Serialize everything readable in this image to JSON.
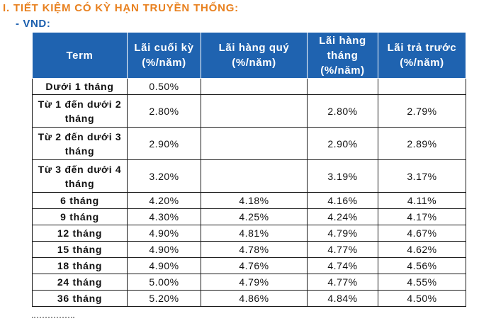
{
  "section_title": "I. TIẾT KIỆM CÓ KỲ HẠN TRUYỀN THỐNG:",
  "sub_title": "- VND:",
  "headers": [
    "Term",
    "Lãi cuối kỳ (%/năm)",
    "Lãi hàng quý (%/năm)",
    "Lãi hàng tháng (%/năm)",
    "Lãi trả trước (%/năm)"
  ],
  "rows": [
    {
      "term": "Dưới 1 tháng",
      "cuoi_ky": "0.50%",
      "hang_quy": "",
      "hang_thang": "",
      "tra_truoc": ""
    },
    {
      "term": "Từ 1 đến dưới 2 tháng",
      "cuoi_ky": "2.80%",
      "hang_quy": "",
      "hang_thang": "2.80%",
      "tra_truoc": "2.79%"
    },
    {
      "term": "Từ 2 đến dưới 3 tháng",
      "cuoi_ky": "2.90%",
      "hang_quy": "",
      "hang_thang": "2.90%",
      "tra_truoc": "2.89%"
    },
    {
      "term": "Từ 3 đến dưới 4 tháng",
      "cuoi_ky": "3.20%",
      "hang_quy": "",
      "hang_thang": "3.19%",
      "tra_truoc": "3.17%"
    },
    {
      "term": "6 tháng",
      "cuoi_ky": "4.20%",
      "hang_quy": "4.18%",
      "hang_thang": "4.16%",
      "tra_truoc": "4.11%"
    },
    {
      "term": "9 tháng",
      "cuoi_ky": "4.30%",
      "hang_quy": "4.25%",
      "hang_thang": "4.24%",
      "tra_truoc": "4.17%"
    },
    {
      "term": "12 tháng",
      "cuoi_ky": "4.90%",
      "hang_quy": "4.81%",
      "hang_thang": "4.79%",
      "tra_truoc": "4.67%"
    },
    {
      "term": "15 tháng",
      "cuoi_ky": "4.90%",
      "hang_quy": "4.78%",
      "hang_thang": "4.77%",
      "tra_truoc": "4.62%"
    },
    {
      "term": "18 tháng",
      "cuoi_ky": "4.90%",
      "hang_quy": "4.76%",
      "hang_thang": "4.74%",
      "tra_truoc": "4.56%"
    },
    {
      "term": "24 tháng",
      "cuoi_ky": "5.00%",
      "hang_quy": "4.79%",
      "hang_thang": "4.77%",
      "tra_truoc": "4.55%"
    },
    {
      "term": "36 tháng",
      "cuoi_ky": "5.20%",
      "hang_quy": "4.86%",
      "hang_thang": "4.84%",
      "tra_truoc": "4.50%"
    }
  ],
  "colors": {
    "title_orange": "#e8801e",
    "subtitle_blue": "#1b5fae",
    "header_blue": "#1f63b0"
  }
}
